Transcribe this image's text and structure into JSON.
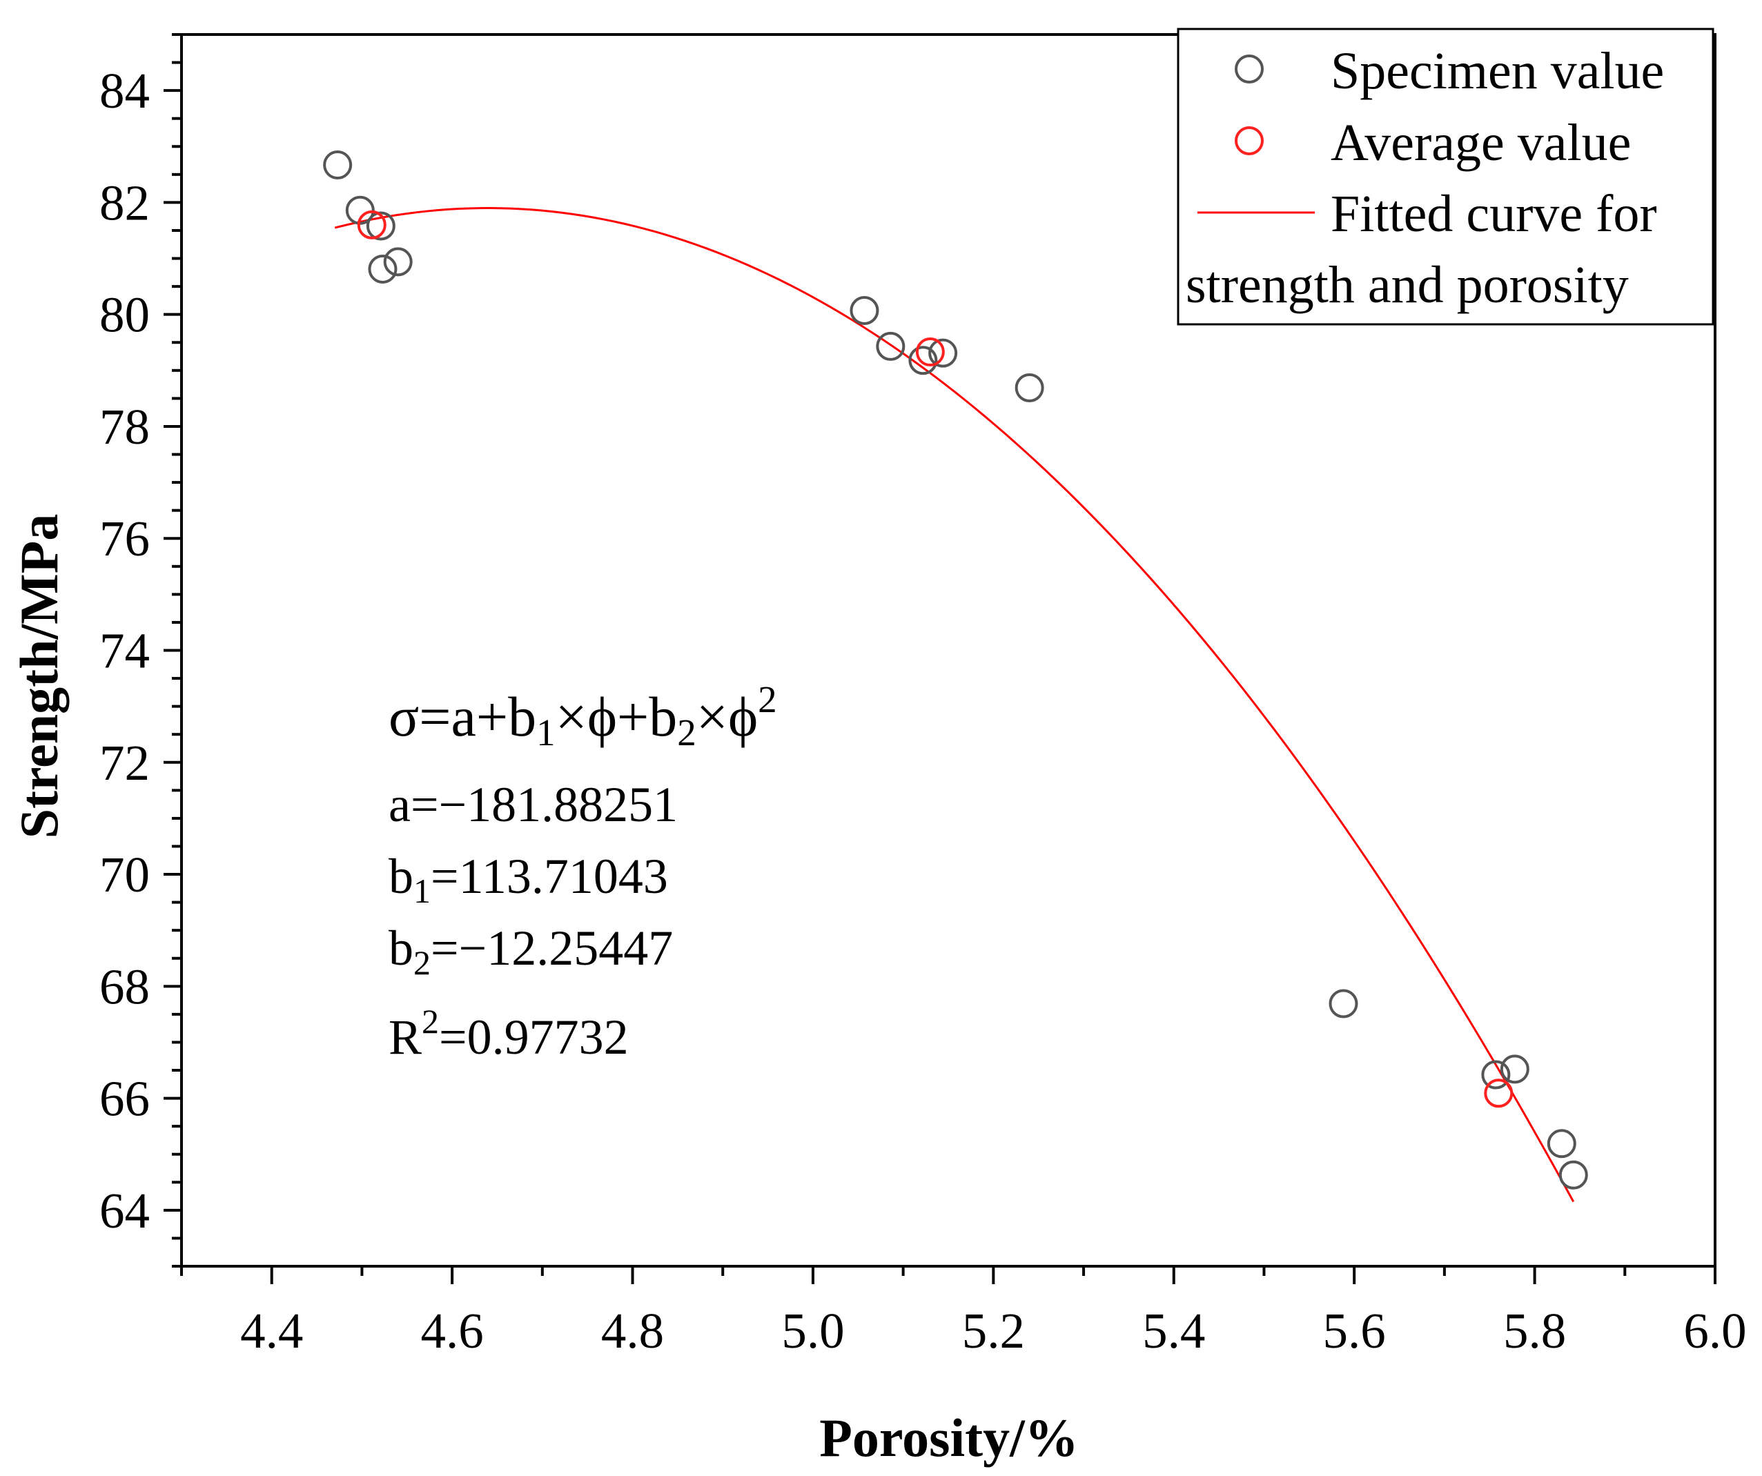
{
  "chart_data": {
    "type": "scatter",
    "title": "",
    "xlabel": "Porosity/%",
    "ylabel": "Strength/MPa",
    "xlim": [
      4.3,
      6.0
    ],
    "ylim": [
      63,
      85
    ],
    "xticks": [
      "4.4",
      "4.6",
      "4.8",
      "5.0",
      "5.2",
      "5.4",
      "5.6",
      "5.8",
      "6.0"
    ],
    "yticks": [
      "64",
      "66",
      "68",
      "70",
      "72",
      "74",
      "76",
      "78",
      "80",
      "82",
      "84"
    ],
    "legend_position": "top-right",
    "series": [
      {
        "name": "Specimen value",
        "marker": "open-circle",
        "color": "#555555",
        "x": [
          4.473,
          4.498,
          4.521,
          4.523,
          4.54,
          5.057,
          5.086,
          5.122,
          5.144,
          5.24,
          5.588,
          5.757,
          5.778,
          5.83,
          5.843
        ],
        "y": [
          82.67,
          81.86,
          81.58,
          80.81,
          80.94,
          80.07,
          79.43,
          79.18,
          79.31,
          78.69,
          67.69,
          66.42,
          66.52,
          65.19,
          64.63
        ]
      },
      {
        "name": "Average value",
        "marker": "open-circle",
        "color": "#ff2020",
        "x": [
          4.511,
          5.13,
          5.76
        ],
        "y": [
          81.6,
          79.33,
          66.09
        ]
      },
      {
        "name": "Fitted curve for strength and porosity",
        "type": "line",
        "color": "#ff0000",
        "equation": "sigma = a + b1*phi + b2*phi^2",
        "coefficients": {
          "a": -181.88251,
          "b1": 113.71043,
          "b2": -12.25447
        },
        "x_range": [
          4.47,
          5.843
        ]
      }
    ],
    "annotation": {
      "equation": {
        "sigma": "σ",
        "eq": "=a+b",
        "sub1": "1",
        "times1": "×ϕ+b",
        "sub2": "2",
        "times2": "×ϕ",
        "sup": "2"
      },
      "a_line": "a=−181.88251",
      "b1_line": {
        "pre": "b",
        "sub": "1",
        "post": "=113.71043"
      },
      "b2_line": {
        "pre": "b",
        "sub": "2",
        "post": "=−12.25447"
      },
      "r2_line": {
        "pre": "R",
        "sup": "2",
        "post": "=0.97732"
      }
    },
    "legend": {
      "specimen": "Specimen value",
      "average": "Average value",
      "fit_line1": "Fitted curve for",
      "fit_line2": "strength and porosity"
    }
  }
}
